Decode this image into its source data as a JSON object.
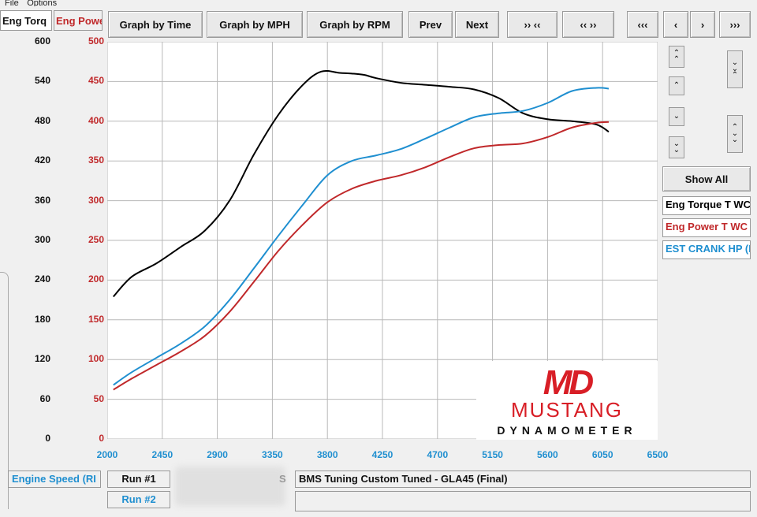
{
  "menu": [
    "File",
    "Options"
  ],
  "tabs": {
    "torque": "Eng Torq",
    "power": "Eng Powe"
  },
  "toolbar": {
    "graph_time": "Graph by Time",
    "graph_mph": "Graph by MPH",
    "graph_rpm": "Graph by RPM",
    "prev": "Prev",
    "next": "Next",
    "zoom_in": "›› ‹‹",
    "zoom_out": "‹‹ ››",
    "first": "‹‹‹",
    "left": "‹",
    "right": "›",
    "last": "›››"
  },
  "right_panel": {
    "show_all": "Show All",
    "legend": [
      {
        "label": "Eng Torque T WC",
        "color": "#000000"
      },
      {
        "label": "Eng Power T WC",
        "color": "#c0282a"
      },
      {
        "label": "EST CRANK HP (I",
        "color": "#1f8fd0"
      }
    ]
  },
  "footer": {
    "x_label": "Engine Speed (RI",
    "run1": "Run #1",
    "run2": "Run #2",
    "run1_desc": "BMS Tuning Custom Tuned - GLA45 (Final)",
    "run1_suffix": "S"
  },
  "logo": {
    "letters": "MD",
    "word1": "MUSTANG",
    "word2": "DYNAMOMETER"
  },
  "colors": {
    "torque": "#000000",
    "power": "#c0282a",
    "crank": "#1f8fd0"
  },
  "chart_data": {
    "type": "line",
    "x_ticks": [
      "2000",
      "2450",
      "2900",
      "3350",
      "3800",
      "4250",
      "4700",
      "5150",
      "5600",
      "6050",
      "6500"
    ],
    "y_left_ticks": [
      "600",
      "540",
      "480",
      "420",
      "360",
      "300",
      "240",
      "180",
      "120",
      "60",
      "0"
    ],
    "y_right_ticks": [
      "500",
      "450",
      "400",
      "350",
      "300",
      "250",
      "200",
      "150",
      "100",
      "50",
      "0"
    ],
    "xlim": [
      2000,
      6500
    ],
    "ylim_torque": [
      0,
      600
    ],
    "ylim_power": [
      0,
      500
    ],
    "series": [
      {
        "name": "Eng Torque T WC",
        "axis": "torque",
        "x": [
          2050,
          2200,
          2400,
          2600,
          2800,
          3000,
          3200,
          3400,
          3600,
          3750,
          3900,
          4000,
          4100,
          4200,
          4400,
          4600,
          4800,
          5000,
          5200,
          5400,
          5600,
          5800,
          6000,
          6100
        ],
        "y": [
          215,
          245,
          265,
          290,
          315,
          360,
          430,
          490,
          535,
          555,
          553,
          552,
          550,
          545,
          538,
          535,
          532,
          528,
          515,
          492,
          483,
          480,
          475,
          464
        ]
      },
      {
        "name": "Eng Power T WC",
        "axis": "power",
        "x": [
          2050,
          2200,
          2400,
          2600,
          2800,
          3000,
          3200,
          3400,
          3600,
          3800,
          4000,
          4200,
          4400,
          4600,
          4800,
          5000,
          5200,
          5400,
          5600,
          5800,
          6000,
          6100
        ],
        "y": [
          62,
          76,
          93,
          110,
          130,
          160,
          198,
          237,
          270,
          298,
          315,
          325,
          332,
          342,
          355,
          366,
          370,
          372,
          380,
          392,
          398,
          399
        ]
      },
      {
        "name": "EST CRANK HP (I",
        "axis": "power",
        "x": [
          2050,
          2200,
          2400,
          2600,
          2800,
          3000,
          3200,
          3400,
          3600,
          3800,
          4000,
          4200,
          4400,
          4600,
          4800,
          5000,
          5200,
          5400,
          5600,
          5800,
          6000,
          6100
        ],
        "y": [
          68,
          84,
          102,
          120,
          142,
          175,
          215,
          256,
          295,
          332,
          350,
          357,
          365,
          378,
          392,
          405,
          410,
          413,
          423,
          438,
          442,
          441
        ]
      }
    ]
  }
}
